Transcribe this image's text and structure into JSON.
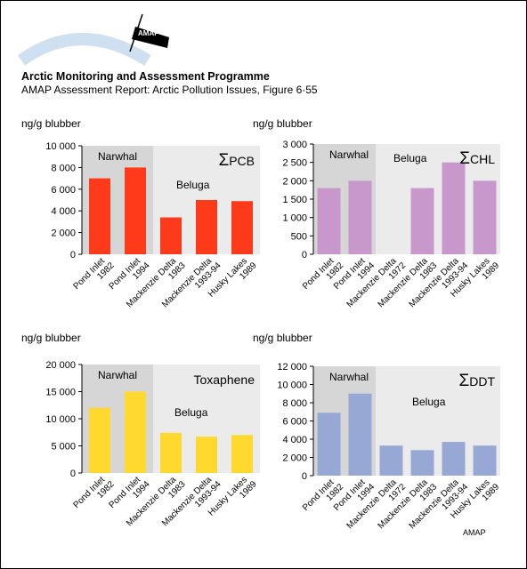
{
  "header": {
    "org_title": "Arctic Monitoring and Assessment Programme",
    "report_title": "AMAP Assessment Report: Arctic Pollution Issues, Figure 6·55",
    "logo_text": "AMAP"
  },
  "footer": {
    "credit": "AMAP"
  },
  "colors": {
    "band_narwhal": "#d6d6d6",
    "band_beluga": "#ebebeb",
    "pcb": "#ff3a1a",
    "chl": "#c897cc",
    "tox": "#ffd92e",
    "ddt": "#97a8d4"
  },
  "chart_data": [
    {
      "type": "bar",
      "id": "pcb",
      "title_sigma": "Σ",
      "title": "PCB",
      "ylabel": "ng/g blubber",
      "ylim": [
        0,
        10000
      ],
      "yticks": [
        0,
        2000,
        4000,
        6000,
        8000,
        10000
      ],
      "ytick_labels": [
        "0",
        "2 000",
        "4 000",
        "6 000",
        "8 000",
        "10 000"
      ],
      "groups": [
        {
          "name": "Narwhal",
          "span": [
            0,
            2
          ]
        },
        {
          "name": "Beluga",
          "span": [
            2,
            5
          ]
        }
      ],
      "categories": [
        [
          "Pond Inlet",
          "1982"
        ],
        [
          "Pond Inlet",
          "1994"
        ],
        [
          "Mackenzie Delta",
          "1983"
        ],
        [
          "Mackenzie Delta",
          "1993-94"
        ],
        [
          "Husky Lakes",
          "1989"
        ]
      ],
      "values": [
        7000,
        8000,
        3400,
        5000,
        4900
      ]
    },
    {
      "type": "bar",
      "id": "chl",
      "title_sigma": "Σ",
      "title": "CHL",
      "ylabel": "ng/g blubber",
      "ylim": [
        0,
        3000
      ],
      "yticks": [
        0,
        500,
        1000,
        1500,
        2000,
        2500,
        3000
      ],
      "ytick_labels": [
        "0",
        "500",
        "1 000",
        "1 500",
        "2 000",
        "2 500",
        "3 000"
      ],
      "groups": [
        {
          "name": "Narwhal",
          "span": [
            0,
            2
          ]
        },
        {
          "name": "Beluga",
          "span": [
            2,
            6
          ]
        }
      ],
      "categories": [
        [
          "Pond Inlet",
          "1982"
        ],
        [
          "Pond Inlet",
          "1994"
        ],
        [
          "Mackenzie Delta",
          "1972"
        ],
        [
          "Mackenzie Delta",
          "1983"
        ],
        [
          "Mackenzie Delta",
          "1993-94"
        ],
        [
          "Husky Lakes",
          "1989"
        ]
      ],
      "values": [
        1800,
        2000,
        null,
        1800,
        2500,
        2000
      ]
    },
    {
      "type": "bar",
      "id": "tox",
      "title_sigma": "",
      "title": "Toxaphene",
      "ylabel": "ng/g blubber",
      "ylim": [
        0,
        20000
      ],
      "yticks": [
        0,
        5000,
        10000,
        15000,
        20000
      ],
      "ytick_labels": [
        "0",
        "5 000",
        "10 000",
        "15 000",
        "20 000"
      ],
      "groups": [
        {
          "name": "Narwhal",
          "span": [
            0,
            2
          ]
        },
        {
          "name": "Beluga",
          "span": [
            2,
            5
          ]
        }
      ],
      "categories": [
        [
          "Pond Inlet",
          "1982"
        ],
        [
          "Pond Inlet",
          "1994"
        ],
        [
          "Mackenzie Delta",
          "1983"
        ],
        [
          "Mackenzie Delta",
          "1993-94"
        ],
        [
          "Husky Lakes",
          "1989"
        ]
      ],
      "values": [
        12000,
        15000,
        7400,
        6700,
        7000
      ]
    },
    {
      "type": "bar",
      "id": "ddt",
      "title_sigma": "Σ",
      "title": "DDT",
      "ylabel": "ng/g blubber",
      "ylim": [
        0,
        12000
      ],
      "yticks": [
        0,
        2000,
        4000,
        6000,
        8000,
        10000,
        12000
      ],
      "ytick_labels": [
        "0",
        "2 000",
        "4 000",
        "6 000",
        "8 000",
        "10 000",
        "12 000"
      ],
      "groups": [
        {
          "name": "Narwhal",
          "span": [
            0,
            2
          ]
        },
        {
          "name": "Beluga",
          "span": [
            2,
            6
          ]
        }
      ],
      "categories": [
        [
          "Pond Inlet",
          "1982"
        ],
        [
          "Pond Inlet",
          "1994"
        ],
        [
          "Mackenzie Delta",
          "1972"
        ],
        [
          "Mackenzie Delta",
          "1983"
        ],
        [
          "Mackenzie Delta",
          "1993-94"
        ],
        [
          "Husky Lakes",
          "1989"
        ]
      ],
      "values": [
        6900,
        9000,
        3300,
        2800,
        3700,
        3300
      ]
    }
  ]
}
